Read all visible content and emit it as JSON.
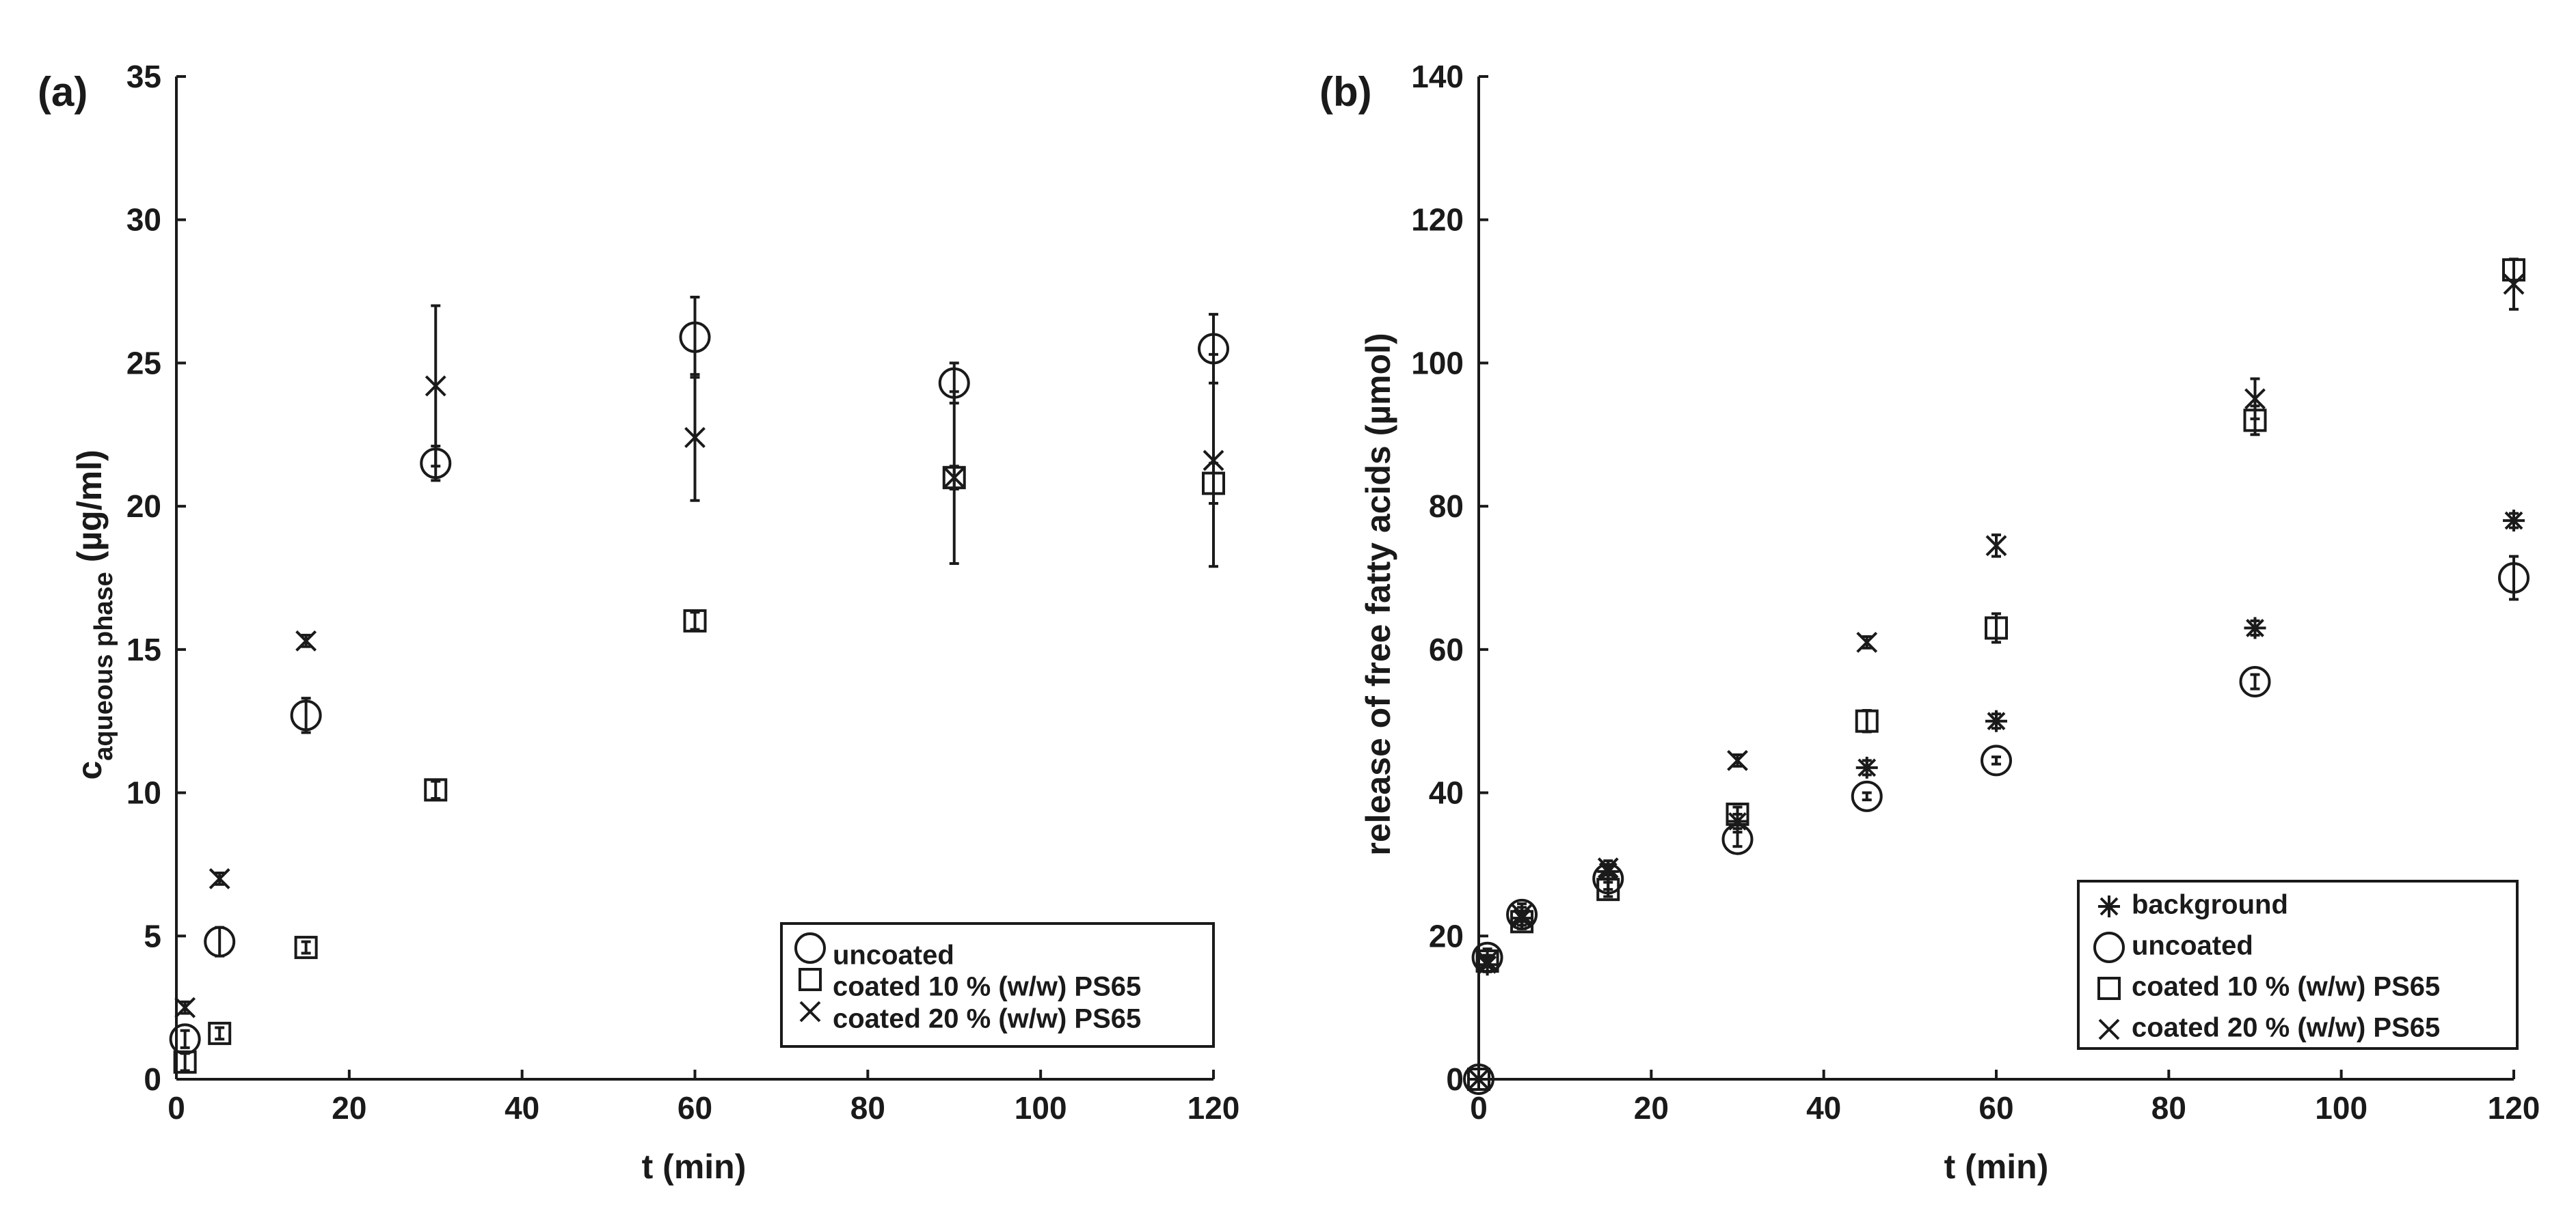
{
  "chart_data": [
    {
      "type": "scatter",
      "panel_label": "(a)",
      "xlabel": "t (min)",
      "ylabel_main": "c",
      "ylabel_sub": "aqueous phase",
      "ylabel_unit": " (µg/ml)",
      "xlim": [
        0,
        120
      ],
      "ylim": [
        0,
        35
      ],
      "xticks": [
        0,
        20,
        40,
        60,
        80,
        100,
        120
      ],
      "yticks": [
        0,
        5,
        10,
        15,
        20,
        25,
        30,
        35
      ],
      "legend_position": "bottom-right",
      "series": [
        {
          "name": "uncoated",
          "marker": "circle",
          "x": [
            1,
            5,
            15,
            30,
            60,
            90,
            120
          ],
          "y": [
            1.4,
            4.8,
            12.7,
            21.5,
            25.9,
            24.3,
            25.5
          ],
          "err": [
            0.3,
            0.5,
            0.6,
            0.6,
            1.4,
            0.7,
            1.2
          ]
        },
        {
          "name": "coated 10 % (w/w) PS65",
          "marker": "square",
          "x": [
            1,
            5,
            15,
            30,
            60,
            90,
            120
          ],
          "y": [
            0.6,
            1.6,
            4.6,
            10.1,
            16.0,
            21.0,
            20.8
          ],
          "err": [
            0.3,
            0.2,
            0.2,
            0.3,
            0.3,
            0.4,
            0.7
          ]
        },
        {
          "name": "coated 20 % (w/w) PS65",
          "marker": "x",
          "x": [
            1,
            5,
            15,
            30,
            60,
            90,
            120
          ],
          "y": [
            2.5,
            7.0,
            15.3,
            24.2,
            22.4,
            21.0,
            21.6
          ],
          "err": [
            0.2,
            0.2,
            0.2,
            2.8,
            2.2,
            3.0,
            3.7
          ]
        }
      ]
    },
    {
      "type": "scatter",
      "panel_label": "(b)",
      "xlabel": "t (min)",
      "ylabel": "release of free fatty acids (µmol)",
      "xlim": [
        0,
        120
      ],
      "ylim": [
        0,
        140
      ],
      "xticks": [
        0,
        20,
        40,
        60,
        80,
        100,
        120
      ],
      "yticks": [
        0,
        20,
        40,
        60,
        80,
        100,
        120,
        140
      ],
      "legend_position": "bottom-right",
      "series": [
        {
          "name": "background",
          "marker": "asterisk",
          "x": [
            0,
            1,
            5,
            15,
            30,
            45,
            60,
            90,
            120
          ],
          "y": [
            0,
            16,
            22.5,
            29,
            36,
            43.5,
            50,
            63,
            78
          ],
          "err": [
            0,
            1.0,
            1.0,
            1.0,
            1.0,
            1.0,
            1.0,
            1.0,
            1.0
          ]
        },
        {
          "name": "uncoated",
          "marker": "circle",
          "x": [
            0,
            1,
            5,
            15,
            30,
            45,
            60,
            90,
            120
          ],
          "y": [
            0,
            17,
            23,
            28,
            33.5,
            39.5,
            44.5,
            55.5,
            70
          ],
          "err": [
            0,
            1.2,
            1.5,
            1.5,
            1.0,
            0.5,
            0.5,
            1.0,
            3.0
          ]
        },
        {
          "name": "coated 10 % (w/w) PS65",
          "marker": "square",
          "x": [
            0,
            1,
            5,
            15,
            30,
            45,
            60,
            90,
            120
          ],
          "y": [
            0,
            16.5,
            22,
            26.5,
            37,
            50,
            63,
            92,
            113
          ],
          "err": [
            0,
            0.8,
            1.0,
            1.0,
            1.0,
            1.5,
            2.0,
            2.0,
            1.5
          ]
        },
        {
          "name": "coated 20 % (w/w) PS65",
          "marker": "x",
          "x": [
            0,
            1,
            5,
            15,
            30,
            45,
            60,
            90,
            120
          ],
          "y": [
            0,
            16.5,
            23,
            29.5,
            44.5,
            61,
            74.5,
            95,
            111
          ],
          "err": [
            0,
            0.8,
            1.0,
            1.0,
            0.8,
            0.8,
            1.5,
            2.8,
            3.5
          ]
        }
      ]
    }
  ]
}
